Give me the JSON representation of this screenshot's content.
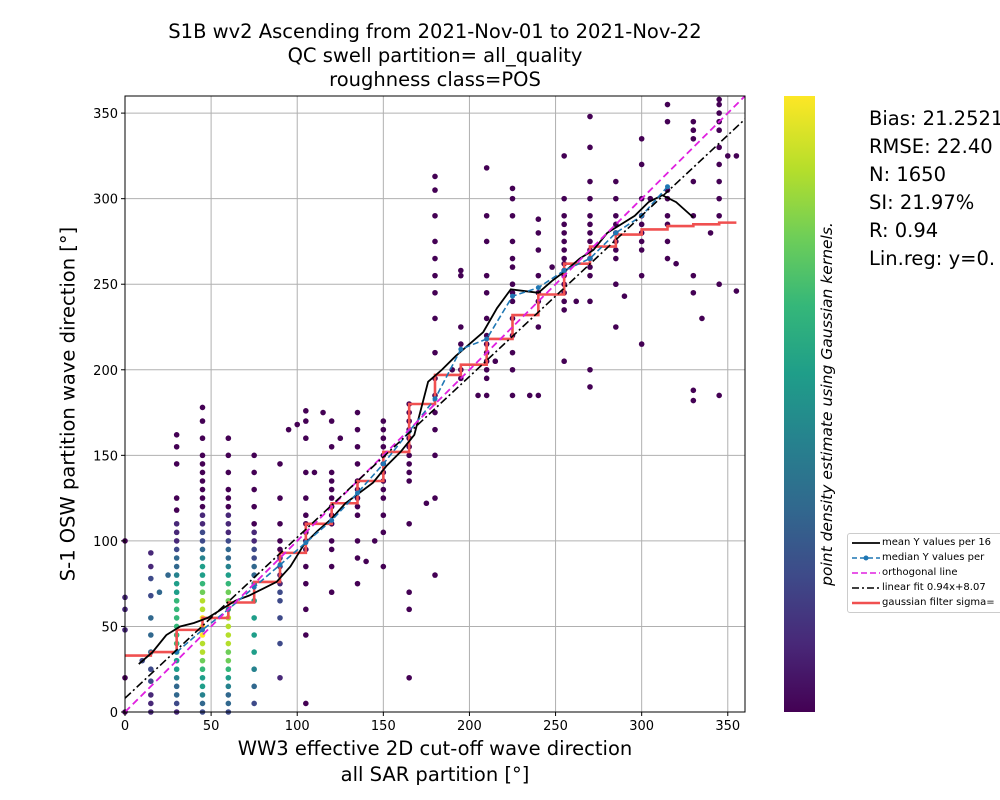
{
  "chart_data": {
    "type": "scatter",
    "title_lines": [
      "S1B wv2 Ascending from 2021-Nov-01 to 2021-Nov-22",
      "QC swell partition= all_quality",
      "roughness class=POS"
    ],
    "xlabel_lines": [
      "WW3 effective 2D cut-off wave direction",
      "all SAR partition [°]"
    ],
    "ylabel": "S-1 OSW partition wave direction [°]",
    "xlim": [
      0,
      360
    ],
    "ylim": [
      0,
      360
    ],
    "xticks": [
      0,
      50,
      100,
      150,
      200,
      250,
      300,
      350
    ],
    "yticks": [
      0,
      50,
      100,
      150,
      200,
      250,
      300,
      350
    ],
    "grid": true,
    "colorbar_label": "point density estimate using Gaussian kernels.",
    "colormap": [
      "#440154",
      "#482878",
      "#3e4a89",
      "#31688e",
      "#26828e",
      "#1f9e89",
      "#35b779",
      "#6ece58",
      "#b5de2b",
      "#fde725"
    ],
    "stats": [
      "Bias: 21.2521",
      "RMSE: 22.40",
      "N: 1650",
      "SI: 21.97%",
      "R: 0.94",
      "Lin.reg: y=0."
    ],
    "legend": {
      "placement": "right",
      "entries": [
        {
          "label": "mean Y values per 16",
          "color": "#000000",
          "style": "solid"
        },
        {
          "label": "median Y values per",
          "color": "#1f77b4",
          "style": "dashed-dot-marker"
        },
        {
          "label": "orthogonal line",
          "color": "#e020e0",
          "style": "dashed"
        },
        {
          "label": "linear fit 0.94x+8.07",
          "color": "#000000",
          "style": "dashdot"
        },
        {
          "label": "gaussian filter sigma=",
          "color": "#f05050",
          "style": "thick"
        }
      ]
    },
    "scatter_columns": [
      {
        "x": 0,
        "y": [
          0,
          20,
          48,
          60,
          67,
          100
        ]
      },
      {
        "x": 15,
        "y": [
          0,
          5,
          10,
          18,
          25,
          35,
          45,
          55,
          68,
          78,
          85,
          93
        ]
      },
      {
        "x": 30,
        "y": [
          0,
          5,
          10,
          15,
          20,
          25,
          30,
          35,
          40,
          45,
          50,
          55,
          60,
          65,
          70,
          75,
          80,
          85,
          90,
          95,
          100,
          105,
          110,
          118,
          125,
          145,
          155,
          162
        ]
      },
      {
        "x": 45,
        "y": [
          0,
          5,
          10,
          15,
          20,
          25,
          30,
          35,
          40,
          45,
          50,
          55,
          60,
          65,
          70,
          75,
          80,
          85,
          90,
          95,
          100,
          105,
          110,
          115,
          120,
          125,
          130,
          135,
          140,
          145,
          150,
          160,
          170,
          178
        ]
      },
      {
        "x": 60,
        "y": [
          0,
          5,
          10,
          15,
          20,
          25,
          30,
          35,
          40,
          45,
          50,
          55,
          60,
          65,
          70,
          75,
          80,
          85,
          90,
          95,
          100,
          105,
          110,
          115,
          120,
          125,
          130,
          140,
          150,
          160
        ]
      },
      {
        "x": 75,
        "y": [
          5,
          15,
          25,
          35,
          45,
          55,
          65,
          75,
          80,
          85,
          90,
          95,
          100,
          105,
          110,
          120,
          130,
          140,
          150
        ]
      },
      {
        "x": 90,
        "y": [
          20,
          40,
          55,
          65,
          70,
          75,
          80,
          85,
          90,
          95,
          100,
          110,
          125,
          145
        ]
      },
      {
        "x": 105,
        "y": [
          5,
          45,
          60,
          75,
          85,
          95,
          100,
          105,
          110,
          115,
          125,
          140,
          160,
          170,
          176
        ]
      },
      {
        "x": 120,
        "y": [
          70,
          85,
          95,
          100,
          110,
          115,
          120,
          125,
          130,
          135,
          140,
          155,
          170
        ]
      },
      {
        "x": 135,
        "y": [
          75,
          90,
          100,
          115,
          120,
          125,
          130,
          135,
          145,
          155,
          165,
          175
        ]
      },
      {
        "x": 150,
        "y": [
          85,
          105,
          115,
          125,
          130,
          135,
          140,
          145,
          150,
          155,
          160,
          165,
          170
        ]
      },
      {
        "x": 165,
        "y": [
          20,
          60,
          70,
          110,
          135,
          140,
          145,
          150,
          155,
          160,
          165,
          170,
          175,
          180
        ]
      },
      {
        "x": 180,
        "y": [
          80,
          125,
          150,
          165,
          175,
          185,
          195,
          210,
          230,
          245,
          255,
          265,
          275,
          290,
          305,
          313
        ]
      },
      {
        "x": 195,
        "y": [
          195,
          200,
          215,
          225,
          255,
          258
        ]
      },
      {
        "x": 210,
        "y": [
          185,
          195,
          200,
          205,
          210,
          215,
          220,
          230,
          245,
          255,
          275,
          290,
          318
        ]
      },
      {
        "x": 225,
        "y": [
          185,
          200,
          210,
          220,
          230,
          240,
          245,
          250,
          260,
          265,
          275,
          290,
          300,
          306
        ]
      },
      {
        "x": 240,
        "y": [
          185,
          225,
          240,
          245,
          255,
          270,
          280,
          288
        ]
      },
      {
        "x": 255,
        "y": [
          205,
          235,
          240,
          245,
          250,
          255,
          258,
          262,
          265,
          270,
          275,
          280,
          285,
          290,
          300,
          325
        ]
      },
      {
        "x": 270,
        "y": [
          190,
          200,
          240,
          255,
          260,
          265,
          270,
          275,
          280,
          285,
          290,
          300,
          310,
          330,
          348
        ]
      },
      {
        "x": 285,
        "y": [
          225,
          250,
          265,
          270,
          275,
          280,
          285,
          290,
          300,
          310
        ]
      },
      {
        "x": 300,
        "y": [
          215,
          255,
          270,
          275,
          280,
          285,
          290,
          300,
          320,
          335
        ]
      },
      {
        "x": 315,
        "y": [
          265,
          275,
          285,
          290,
          300,
          305,
          345,
          355
        ]
      },
      {
        "x": 330,
        "y": [
          182,
          188,
          245,
          255,
          290,
          310,
          335,
          340,
          345
        ]
      },
      {
        "x": 345,
        "y": [
          185,
          250,
          290,
          300,
          310,
          320,
          330,
          340,
          345,
          350,
          355,
          358
        ]
      },
      {
        "x": 355,
        "y": [
          246,
          325
        ]
      }
    ],
    "extra_points": [
      [
        10,
        30
      ],
      [
        20,
        70
      ],
      [
        25,
        80
      ],
      [
        95,
        165
      ],
      [
        100,
        168
      ],
      [
        110,
        140
      ],
      [
        115,
        175
      ],
      [
        125,
        160
      ],
      [
        140,
        88
      ],
      [
        145,
        100
      ],
      [
        175,
        122
      ],
      [
        190,
        200
      ],
      [
        205,
        185
      ],
      [
        215,
        205
      ],
      [
        235,
        185
      ],
      [
        248,
        260
      ],
      [
        262,
        240
      ],
      [
        290,
        243
      ],
      [
        305,
        300
      ],
      [
        320,
        262
      ],
      [
        335,
        230
      ],
      [
        340,
        280
      ],
      [
        350,
        325
      ]
    ],
    "series": [
      {
        "name": "mean Y values per 16",
        "x": [
          8,
          16,
          24,
          32,
          40,
          48,
          56,
          64,
          72,
          80,
          88,
          96,
          104,
          112,
          120,
          128,
          136,
          144,
          152,
          160,
          168,
          176,
          184,
          192,
          200,
          208,
          216,
          224,
          232,
          240,
          248,
          256,
          264,
          272,
          280,
          288,
          296,
          304,
          312,
          320,
          330
        ],
        "y": [
          28,
          35,
          45,
          50,
          52,
          55,
          60,
          65,
          68,
          72,
          76,
          85,
          98,
          106,
          113,
          122,
          128,
          134,
          144,
          152,
          162,
          193,
          200,
          208,
          215,
          222,
          236,
          247,
          246,
          245,
          252,
          258,
          265,
          270,
          280,
          285,
          290,
          298,
          302,
          298,
          289
        ]
      },
      {
        "name": "median Y values per",
        "x": [
          30,
          45,
          60,
          75,
          90,
          105,
          120,
          135,
          150,
          165,
          180,
          195,
          210,
          225,
          240,
          255,
          270,
          285,
          300,
          315
        ],
        "y": [
          35,
          48,
          60,
          73,
          86,
          99,
          112,
          128,
          145,
          164,
          183,
          212,
          218,
          243,
          248,
          258,
          265,
          280,
          290,
          307
        ]
      },
      {
        "name": "orthogonal line",
        "x": [
          0,
          360
        ],
        "y": [
          0,
          360
        ]
      },
      {
        "name": "linear fit 0.94x+8.07",
        "x": [
          0,
          360
        ],
        "y": [
          8.07,
          346.47
        ]
      },
      {
        "name": "gaussian filter sigma=",
        "x": [
          0,
          15,
          30,
          45,
          60,
          75,
          90,
          105,
          120,
          135,
          150,
          165,
          180,
          195,
          210,
          225,
          240,
          255,
          270,
          285,
          300,
          315,
          330,
          345,
          355
        ],
        "y": [
          33,
          35,
          48,
          55,
          64,
          76,
          93,
          110,
          122,
          135,
          152,
          180,
          197,
          203,
          218,
          232,
          244,
          262,
          272,
          279,
          282,
          284,
          285,
          286,
          286
        ]
      }
    ]
  }
}
